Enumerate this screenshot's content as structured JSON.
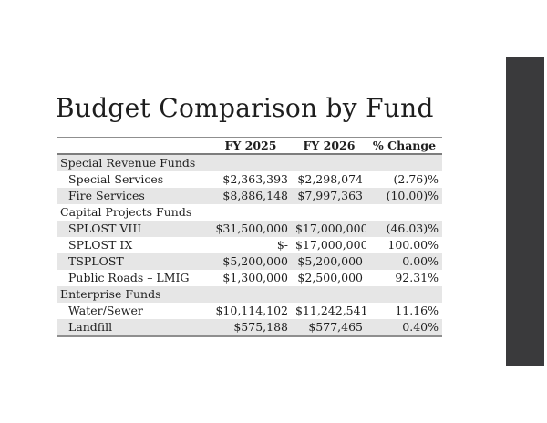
{
  "slide": {
    "title": "Budget Comparison by Fund"
  },
  "colors": {
    "accent-bar": "#3a3a3c",
    "row-band": "#e6e6e6",
    "table-border": "#8f8f8f",
    "text": "#1e1e1e"
  },
  "table": {
    "columns": [
      "FY 2025",
      "FY 2026",
      "% Change"
    ],
    "rows": [
      {
        "kind": "section",
        "label": "Special Revenue Funds",
        "values": [
          "",
          "",
          ""
        ]
      },
      {
        "kind": "item",
        "label": "Special Services",
        "values": [
          "$2,363,393",
          "$2,298,074",
          "(2.76)%"
        ]
      },
      {
        "kind": "item",
        "label": "Fire Services",
        "values": [
          "$8,886,148",
          "$7,997,363",
          "(10.00)%"
        ]
      },
      {
        "kind": "section",
        "label": "Capital Projects Funds",
        "values": [
          "",
          "",
          ""
        ]
      },
      {
        "kind": "item",
        "label": "SPLOST VIII",
        "values": [
          "$31,500,000",
          "$17,000,000",
          "(46.03)%"
        ]
      },
      {
        "kind": "item",
        "label": "SPLOST IX",
        "values": [
          "$-",
          "$17,000,000",
          "100.00%"
        ]
      },
      {
        "kind": "item",
        "label": "TSPLOST",
        "values": [
          "$5,200,000",
          "$5,200,000",
          "0.00%"
        ]
      },
      {
        "kind": "item",
        "label": "Public Roads – LMIG",
        "values": [
          "$1,300,000",
          "$2,500,000",
          "92.31%"
        ]
      },
      {
        "kind": "section",
        "label": "Enterprise Funds",
        "values": [
          "",
          "",
          ""
        ]
      },
      {
        "kind": "item",
        "label": "Water/Sewer",
        "values": [
          "$10,114,102",
          "$11,242,541",
          "11.16%"
        ]
      },
      {
        "kind": "item",
        "label": "Landfill",
        "values": [
          "$575,188",
          "$577,465",
          "0.40%"
        ]
      }
    ]
  }
}
